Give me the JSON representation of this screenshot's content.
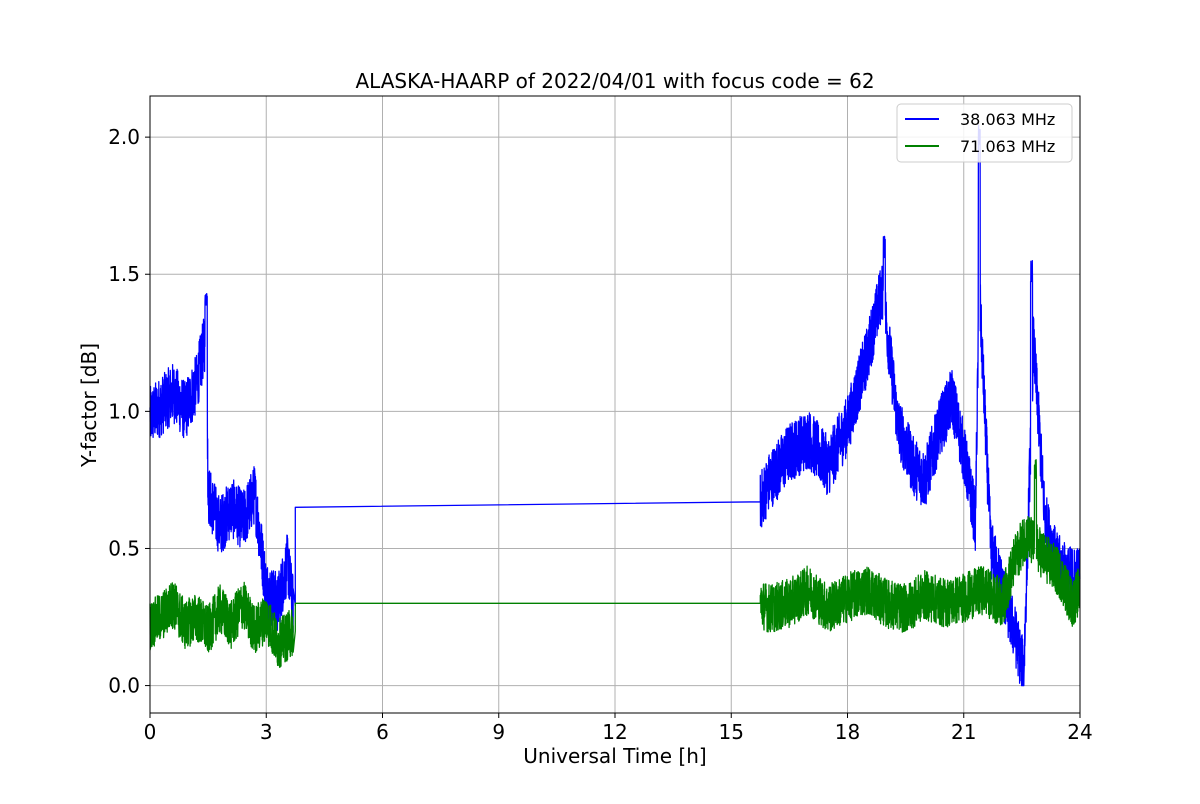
{
  "chart_data": {
    "type": "line",
    "title": "ALASKA-HAARP of 2022/04/01 with focus code = 62",
    "xlabel": "Universal Time [h]",
    "ylabel": "Y-factor [dB]",
    "xlim": [
      0,
      24
    ],
    "ylim": [
      -0.1,
      2.15
    ],
    "x_ticks": [
      0,
      3,
      6,
      9,
      12,
      15,
      18,
      21,
      24
    ],
    "x_tick_labels": [
      "0",
      "3",
      "6",
      "9",
      "12",
      "15",
      "18",
      "21",
      "24"
    ],
    "y_ticks": [
      0.0,
      0.5,
      1.0,
      1.5,
      2.0
    ],
    "y_tick_labels": [
      "0.0",
      "0.5",
      "1.0",
      "1.5",
      "2.0"
    ],
    "grid": true,
    "legend_position": "top-right",
    "noise_note": "series are dense noisy signals; values below are approximate envelope means",
    "series": [
      {
        "name": "38.063 MHz",
        "color": "#0000ff",
        "x": [
          0.0,
          0.3,
          0.6,
          0.9,
          1.2,
          1.45,
          1.5,
          1.8,
          2.1,
          2.4,
          2.7,
          3.0,
          3.3,
          3.55,
          3.7,
          3.75,
          15.75,
          16.0,
          16.5,
          17.0,
          17.5,
          18.0,
          18.5,
          18.9,
          19.3,
          19.7,
          20.0,
          20.4,
          20.7,
          21.0,
          21.3,
          21.4,
          21.7,
          22.0,
          22.3,
          22.55,
          22.8,
          23.1,
          23.4,
          23.7,
          24.0
        ],
        "y": [
          0.98,
          1.02,
          1.07,
          1.0,
          1.1,
          1.28,
          0.7,
          0.58,
          0.65,
          0.6,
          0.7,
          0.35,
          0.3,
          0.45,
          0.28,
          0.65,
          0.67,
          0.75,
          0.85,
          0.9,
          0.8,
          0.95,
          1.2,
          1.45,
          0.95,
          0.8,
          0.75,
          0.95,
          1.05,
          0.85,
          0.6,
          1.45,
          0.5,
          0.35,
          0.2,
          0.05,
          1.25,
          0.6,
          0.45,
          0.4,
          0.4
        ]
      },
      {
        "name": "71.063 MHz",
        "color": "#008000",
        "x": [
          0.0,
          0.3,
          0.6,
          0.9,
          1.2,
          1.5,
          1.8,
          2.1,
          2.4,
          2.7,
          3.0,
          3.3,
          3.55,
          3.7,
          3.75,
          15.75,
          16.0,
          16.5,
          17.0,
          17.5,
          18.0,
          18.5,
          19.0,
          19.5,
          20.0,
          20.5,
          21.0,
          21.5,
          22.0,
          22.3,
          22.6,
          22.9,
          23.2,
          23.5,
          23.8,
          24.0
        ],
        "y": [
          0.22,
          0.25,
          0.3,
          0.22,
          0.25,
          0.2,
          0.28,
          0.22,
          0.3,
          0.2,
          0.25,
          0.15,
          0.18,
          0.2,
          0.3,
          0.3,
          0.28,
          0.3,
          0.35,
          0.28,
          0.32,
          0.35,
          0.3,
          0.28,
          0.33,
          0.3,
          0.32,
          0.35,
          0.3,
          0.45,
          0.55,
          0.5,
          0.45,
          0.4,
          0.3,
          0.35
        ]
      }
    ],
    "annotations": [
      {
        "series": "38.063 MHz",
        "x": 21.4,
        "y": 2.05,
        "kind": "spike"
      },
      {
        "series": "38.063 MHz",
        "x": 22.75,
        "y": 1.55,
        "kind": "spike"
      },
      {
        "series": "38.063 MHz",
        "x": 18.95,
        "y": 1.64,
        "kind": "peak"
      },
      {
        "series": "38.063 MHz",
        "x": 1.45,
        "y": 1.43,
        "kind": "peak"
      },
      {
        "series": "71.063 MHz",
        "x": 22.85,
        "y": 0.83,
        "kind": "peak"
      }
    ]
  }
}
